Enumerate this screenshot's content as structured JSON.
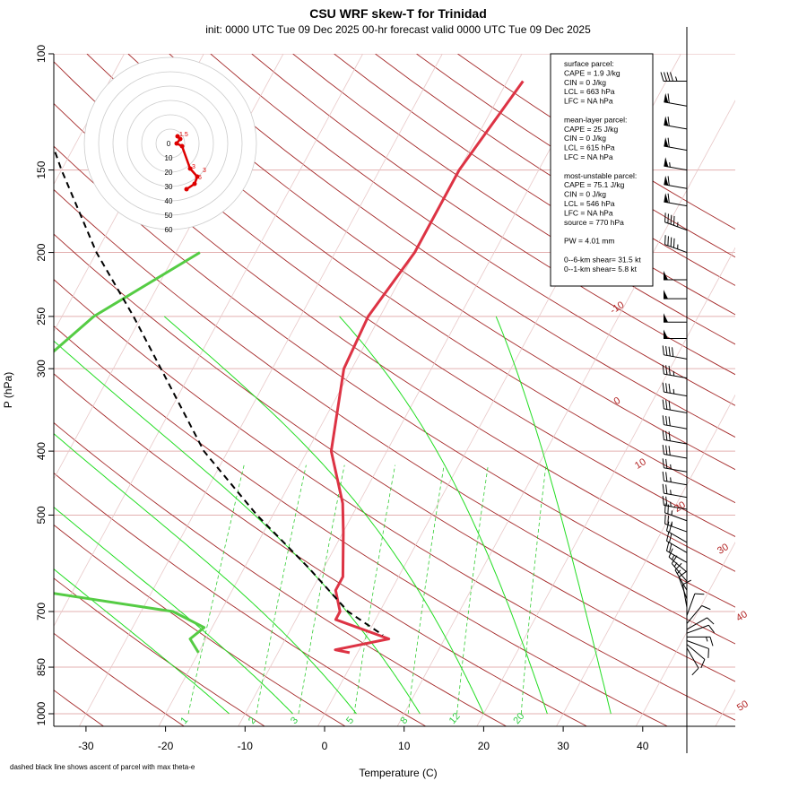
{
  "chart_data": {
    "type": "line",
    "title": "CSU WRF skew-T for Trinidad",
    "subtitle": "init: 0000 UTC Tue 09 Dec 2025    00-hr forecast valid 0000 UTC Tue 09 Dec 2025",
    "xlabel": "Temperature (C)",
    "ylabel": "P (hPa)",
    "footnote": "dashed black line shows ascent of parcel with max theta-e",
    "x_ticks": [
      -30,
      -20,
      -10,
      0,
      10,
      20,
      30,
      40
    ],
    "y_ticks": [
      100,
      150,
      200,
      250,
      300,
      400,
      500,
      700,
      850,
      1000
    ],
    "xlim": [
      -33,
      46
    ],
    "ylim": [
      1050,
      100
    ],
    "y_scale": "log",
    "isotherm_labels": [
      "-10",
      "0",
      "10",
      "20",
      "30",
      "40",
      "50"
    ],
    "mixing_ratio_labels": [
      "1",
      "2",
      "3",
      "5",
      "8",
      "12",
      "20"
    ],
    "temperature_profile": {
      "color": "#dd3344",
      "points": [
        [
          -18,
          110
        ],
        [
          -20,
          150
        ],
        [
          -20,
          200
        ],
        [
          -21.5,
          250
        ],
        [
          -21,
          300
        ],
        [
          -17,
          400
        ],
        [
          -12,
          480
        ],
        [
          -10,
          530
        ],
        [
          -7,
          620
        ],
        [
          -7,
          650
        ],
        [
          -5,
          700
        ],
        [
          -5,
          720
        ],
        [
          3,
          770
        ],
        [
          -3,
          800
        ],
        [
          -1,
          808
        ]
      ]
    },
    "dewpoint_profile": {
      "color": "#55cc44",
      "points": [
        [
          -47,
          200
        ],
        [
          -56,
          250
        ],
        [
          -60,
          300
        ],
        [
          -57,
          400
        ],
        [
          -53,
          450
        ],
        [
          -53,
          470
        ],
        [
          -56,
          500
        ],
        [
          -60,
          550
        ],
        [
          -58,
          600
        ],
        [
          -45,
          650
        ],
        [
          -26,
          700
        ],
        [
          -21,
          740
        ],
        [
          -22,
          770
        ],
        [
          -20,
          808
        ]
      ]
    },
    "parcel_ascent": {
      "style": "dashed",
      "color": "#000000",
      "points": [
        [
          -80,
          110
        ],
        [
          -70,
          150
        ],
        [
          -60,
          200
        ],
        [
          -51,
          250
        ],
        [
          -44,
          300
        ],
        [
          -33,
          400
        ],
        [
          -22,
          500
        ],
        [
          -12,
          600
        ],
        [
          -4,
          700
        ],
        [
          2,
          760
        ]
      ]
    },
    "hodograph": {
      "ring_labels": [
        "0",
        "10",
        "20",
        "30",
        "40",
        "50",
        "60"
      ],
      "point_labels": [
        "1.5",
        "3",
        "6",
        "3"
      ],
      "color": "#dd0000"
    },
    "info_box": {
      "lines": [
        "surface parcel:",
        "CAPE = 1.9 J/kg",
        "CIN = 0 J/kg",
        "LCL = 663 hPa",
        "LFC = NA hPa",
        "",
        "mean-layer parcel:",
        "CAPE = 25 J/kg",
        "CIN = 0 J/kg",
        "LCL = 615 hPa",
        "LFC = NA hPa",
        "",
        "most-unstable parcel:",
        "CAPE = 75.1 J/kg",
        "CIN = 0 J/kg",
        "LCL = 546 hPa",
        "LFC = NA hPa",
        "source = 770 hPa",
        "",
        "PW =  4.01 mm",
        "",
        "0--6-km shear= 31.5 kt",
        "0--1-km shear= 5.8 kt"
      ]
    },
    "wind_barbs": [
      {
        "p": 110,
        "speed_kt": 45,
        "dir_deg": 270
      },
      {
        "p": 120,
        "speed_kt": 60,
        "dir_deg": 280
      },
      {
        "p": 130,
        "speed_kt": 60,
        "dir_deg": 280
      },
      {
        "p": 140,
        "speed_kt": 60,
        "dir_deg": 280
      },
      {
        "p": 150,
        "speed_kt": 55,
        "dir_deg": 280
      },
      {
        "p": 160,
        "speed_kt": 60,
        "dir_deg": 280
      },
      {
        "p": 170,
        "speed_kt": 60,
        "dir_deg": 280
      },
      {
        "p": 185,
        "speed_kt": 45,
        "dir_deg": 290
      },
      {
        "p": 200,
        "speed_kt": 45,
        "dir_deg": 290
      },
      {
        "p": 220,
        "speed_kt": 50,
        "dir_deg": 270
      },
      {
        "p": 235,
        "speed_kt": 50,
        "dir_deg": 270
      },
      {
        "p": 255,
        "speed_kt": 50,
        "dir_deg": 270
      },
      {
        "p": 270,
        "speed_kt": 50,
        "dir_deg": 270
      },
      {
        "p": 290,
        "speed_kt": 40,
        "dir_deg": 280
      },
      {
        "p": 310,
        "speed_kt": 35,
        "dir_deg": 280
      },
      {
        "p": 330,
        "speed_kt": 35,
        "dir_deg": 280
      },
      {
        "p": 350,
        "speed_kt": 30,
        "dir_deg": 280
      },
      {
        "p": 370,
        "speed_kt": 30,
        "dir_deg": 280
      },
      {
        "p": 390,
        "speed_kt": 30,
        "dir_deg": 280
      },
      {
        "p": 410,
        "speed_kt": 30,
        "dir_deg": 280
      },
      {
        "p": 430,
        "speed_kt": 25,
        "dir_deg": 280
      },
      {
        "p": 450,
        "speed_kt": 25,
        "dir_deg": 280
      },
      {
        "p": 470,
        "speed_kt": 25,
        "dir_deg": 280
      },
      {
        "p": 490,
        "speed_kt": 25,
        "dir_deg": 280
      },
      {
        "p": 510,
        "speed_kt": 25,
        "dir_deg": 290
      },
      {
        "p": 530,
        "speed_kt": 25,
        "dir_deg": 290
      },
      {
        "p": 550,
        "speed_kt": 20,
        "dir_deg": 300
      },
      {
        "p": 570,
        "speed_kt": 20,
        "dir_deg": 300
      },
      {
        "p": 590,
        "speed_kt": 20,
        "dir_deg": 300
      },
      {
        "p": 610,
        "speed_kt": 15,
        "dir_deg": 310
      },
      {
        "p": 630,
        "speed_kt": 15,
        "dir_deg": 320
      },
      {
        "p": 650,
        "speed_kt": 15,
        "dir_deg": 330
      },
      {
        "p": 670,
        "speed_kt": 10,
        "dir_deg": 340
      },
      {
        "p": 690,
        "speed_kt": 10,
        "dir_deg": 350
      },
      {
        "p": 710,
        "speed_kt": 10,
        "dir_deg": 20
      },
      {
        "p": 730,
        "speed_kt": 10,
        "dir_deg": 40
      },
      {
        "p": 745,
        "speed_kt": 10,
        "dir_deg": 60
      },
      {
        "p": 755,
        "speed_kt": 10,
        "dir_deg": 70
      },
      {
        "p": 765,
        "speed_kt": 15,
        "dir_deg": 90
      },
      {
        "p": 775,
        "speed_kt": 10,
        "dir_deg": 110
      },
      {
        "p": 785,
        "speed_kt": 10,
        "dir_deg": 130
      },
      {
        "p": 795,
        "speed_kt": 10,
        "dir_deg": 150
      }
    ],
    "grid": true
  }
}
